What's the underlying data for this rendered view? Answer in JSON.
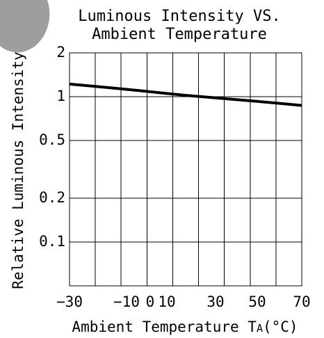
{
  "title_line1": "Luminous Intensity VS.",
  "title_line2": "Ambient Temperature",
  "chart_data": {
    "type": "line",
    "title": "Luminous Intensity VS. Ambient Temperature",
    "xlabel_main": "Ambient Temperature ",
    "xlabel_sym": "T",
    "xlabel_sub": "A",
    "xlabel_unit": "(°C)",
    "ylabel": "Relative Luminous Intensity",
    "x_ticks": [
      {
        "value": -30,
        "label": "−30"
      },
      {
        "value": -10,
        "label": "−10"
      },
      {
        "value": 0,
        "label": "0"
      },
      {
        "value": 10,
        "label": "10"
      },
      {
        "value": 30,
        "label": "30"
      },
      {
        "value": 50,
        "label": "50"
      },
      {
        "value": 70,
        "label": "70"
      }
    ],
    "y_ticks": [
      {
        "value": 2,
        "label": "2"
      },
      {
        "value": 1,
        "label": "1"
      },
      {
        "value": 0.5,
        "label": "0.5"
      },
      {
        "value": 0.2,
        "label": "0.2"
      },
      {
        "value": 0.1,
        "label": "0.1"
      }
    ],
    "xlim": [
      -30,
      70
    ],
    "y_scale": "log",
    "ylim_decades": [
      0.05,
      2
    ],
    "grid": true,
    "series": [
      {
        "x": [
          -30,
          -20,
          -10,
          0,
          10,
          20,
          30,
          40,
          50,
          60,
          70
        ],
        "y": [
          1.22,
          1.18,
          1.14,
          1.1,
          1.06,
          1.02,
          0.99,
          0.96,
          0.93,
          0.9,
          0.87
        ]
      }
    ]
  },
  "watermark_color": "#9e9e9e"
}
